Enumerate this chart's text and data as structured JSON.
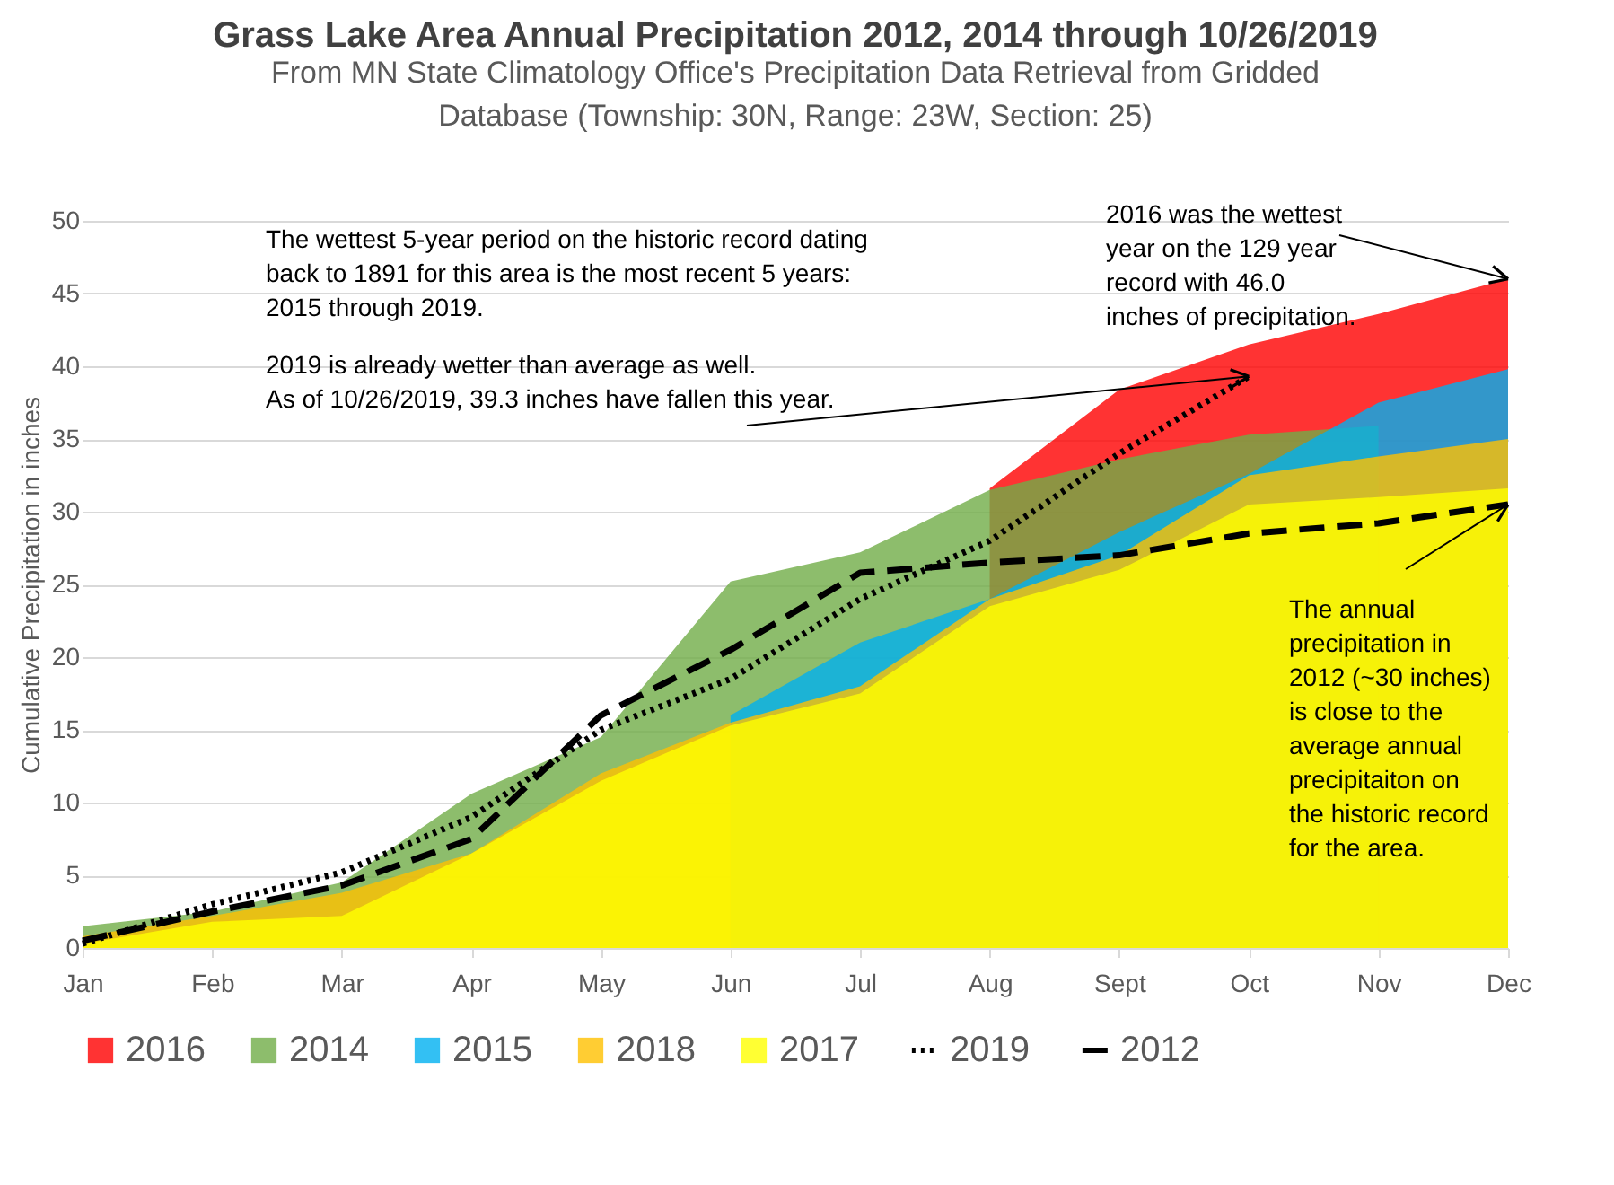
{
  "chart_data": {
    "type": "area",
    "title": "Grass Lake Area Annual Precipitation 2012, 2014 through 10/26/2019",
    "subtitle": "From MN State Climatology Office's Precipitation Data Retrieval from Gridded\nDatabase (Township: 30N, Range: 23W, Section: 25)",
    "ylabel": "Cumulative Precipitation in inches",
    "categories": [
      "Jan",
      "Feb",
      "Mar",
      "Apr",
      "May",
      "Jun",
      "Jul",
      "Aug",
      "Sept",
      "Oct",
      "Nov",
      "Dec"
    ],
    "series": [
      {
        "name": "2016",
        "color": "#ff0000",
        "values": [
          null,
          null,
          null,
          null,
          null,
          null,
          null,
          31.6,
          38.4,
          41.5,
          43.6,
          46.0
        ]
      },
      {
        "name": "2014",
        "color": "#70ad47",
        "values": [
          1.5,
          2.5,
          4.5,
          10.6,
          14.5,
          25.2,
          27.2,
          31.5,
          33.6,
          35.3,
          35.9,
          null
        ]
      },
      {
        "name": "2015",
        "color": "#00b0f0",
        "values": [
          null,
          null,
          null,
          null,
          null,
          16.0,
          21.0,
          24.0,
          28.6,
          32.6,
          37.5,
          39.8
        ]
      },
      {
        "name": "2018",
        "color": "#ffc000",
        "values": [
          0.8,
          2.2,
          3.8,
          6.5,
          12.0,
          15.5,
          18.0,
          24.0,
          27.0,
          32.5,
          33.8,
          35.0
        ]
      },
      {
        "name": "2017",
        "color": "#ffff00",
        "values": [
          0.3,
          1.8,
          2.2,
          6.5,
          11.5,
          15.3,
          17.5,
          23.5,
          26.0,
          30.5,
          31.0,
          31.6
        ]
      },
      {
        "name": "2019",
        "color": "#000000",
        "type": "line",
        "line_style": "dotted",
        "values": [
          0.3,
          3.0,
          5.2,
          9.0,
          15.0,
          18.5,
          24.0,
          28.0,
          34.0,
          39.3,
          null,
          null
        ]
      },
      {
        "name": "2012",
        "color": "#000000",
        "type": "line",
        "line_style": "dashed",
        "values": [
          0.5,
          2.5,
          4.3,
          7.5,
          16.0,
          20.5,
          25.8,
          26.5,
          27.0,
          28.5,
          29.2,
          30.5
        ]
      }
    ],
    "ylim": [
      0,
      50
    ],
    "yticks": [
      0,
      5,
      10,
      15,
      20,
      25,
      30,
      35,
      40,
      45,
      50
    ],
    "grid": "y",
    "legend": "bottom",
    "marker": "none",
    "annotations": [
      "The wettest  5-year period on the historic record dating\nback to 1891 for this area is the most recent 5 years:\n2015 through 2019.",
      {
        "text": "2019 is already wetter than average as well.\nAs of 10/26/2019, 39.3 inches have fallen this year.",
        "x": "Oct",
        "y": 39.3
      },
      {
        "text": "2016 was the wettest\nyear on the 129 year\nrecord with 46.0\ninches of precipitation.",
        "x": "Dec",
        "y": 46.0
      },
      {
        "text": "The annual\nprecipitation in\n2012 (~30 inches)\nis close to the\naverage annual\nprecipitaiton on\nthe historic record\nfor the area.",
        "x": "Dec",
        "y": 30.5
      }
    ]
  }
}
